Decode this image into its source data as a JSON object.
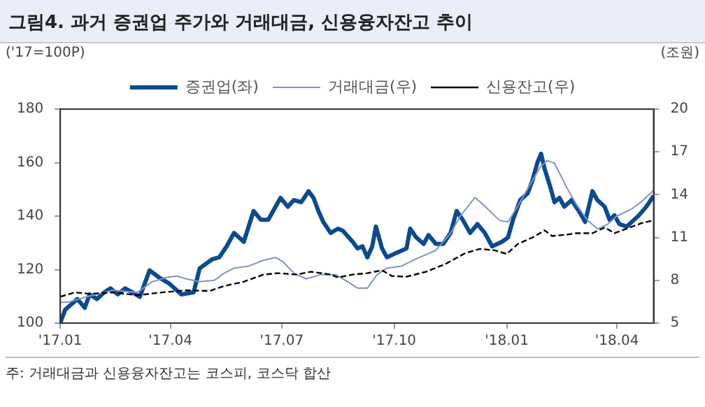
{
  "chart_data": {
    "type": "line",
    "title": "그림4. 과거 증권업 주가와 거래대금, 신용융자잔고 추이",
    "ylabel": "('17=100P)",
    "y2label": "(조원)",
    "annotations": [
      "주: 거래대금과 신용융자잔고는 코스피, 코스닥 합산"
    ],
    "xlim": [
      "2017-01-01",
      "2018-05-01"
    ],
    "xticks": [
      {
        "value": "2017-01-01",
        "label": "'17.01"
      },
      {
        "value": "2017-04-01",
        "label": "'17.04"
      },
      {
        "value": "2017-07-01",
        "label": "'17.07"
      },
      {
        "value": "2017-10-01",
        "label": "'17.10"
      },
      {
        "value": "2018-01-01",
        "label": "'18.01"
      },
      {
        "value": "2018-04-01",
        "label": "'18.04"
      }
    ],
    "ylim": [
      100,
      180
    ],
    "yticks": [
      100,
      120,
      140,
      160,
      180
    ],
    "y2lim": [
      5,
      20
    ],
    "y2ticks": [
      5,
      8,
      11,
      14,
      17,
      20
    ],
    "grid": false,
    "legend": "top",
    "marker": "none",
    "series": [
      {
        "name": "증권업(좌)",
        "color": "#0b4a8f",
        "line_style": "solid",
        "x": [
          "2017-01-01",
          "2017-01-05",
          "2017-01-11",
          "2017-01-15",
          "2017-01-21",
          "2017-01-25",
          "2017-01-31",
          "2017-02-06",
          "2017-02-11",
          "2017-02-17",
          "2017-02-23",
          "2017-03-01",
          "2017-03-07",
          "2017-03-15",
          "2017-03-23",
          "2017-03-31",
          "2017-04-10",
          "2017-04-20",
          "2017-04-25",
          "2017-05-05",
          "2017-05-11",
          "2017-05-17",
          "2017-05-23",
          "2017-05-31",
          "2017-06-08",
          "2017-06-14",
          "2017-06-20",
          "2017-06-24",
          "2017-06-30",
          "2017-07-06",
          "2017-07-11",
          "2017-07-17",
          "2017-07-23",
          "2017-07-27",
          "2017-07-31",
          "2017-08-04",
          "2017-08-10",
          "2017-08-16",
          "2017-08-20",
          "2017-08-28",
          "2017-09-01",
          "2017-09-05",
          "2017-09-09",
          "2017-09-13",
          "2017-09-16",
          "2017-09-21",
          "2017-09-25",
          "2017-10-03",
          "2017-10-11",
          "2017-10-14",
          "2017-10-19",
          "2017-10-25",
          "2017-10-29",
          "2017-11-04",
          "2017-11-10",
          "2017-11-16",
          "2017-11-21",
          "2017-11-26",
          "2017-12-02",
          "2017-12-08",
          "2017-12-14",
          "2017-12-20",
          "2017-12-28",
          "2018-01-02",
          "2018-01-06",
          "2018-01-12",
          "2018-01-18",
          "2018-01-22",
          "2018-01-26",
          "2018-01-29",
          "2018-02-01",
          "2018-02-05",
          "2018-02-09",
          "2018-02-13",
          "2018-02-17",
          "2018-02-23",
          "2018-03-02",
          "2018-03-06",
          "2018-03-12",
          "2018-03-16",
          "2018-03-22",
          "2018-03-26",
          "2018-03-30",
          "2018-04-03",
          "2018-04-09",
          "2018-04-15",
          "2018-04-19",
          "2018-04-25",
          "2018-05-01"
        ],
        "values": [
          100,
          105,
          107.4,
          109,
          105.7,
          110.7,
          109,
          111.5,
          113,
          110.7,
          113,
          111.5,
          109.8,
          119.7,
          117,
          114.8,
          110.7,
          111.5,
          120.5,
          123.8,
          124.6,
          128.7,
          133.7,
          130.4,
          141.9,
          138.6,
          138.6,
          141.9,
          146.8,
          143.5,
          146,
          145.2,
          149.3,
          146.8,
          141.9,
          137.8,
          133.7,
          135.3,
          134.5,
          130.4,
          127.9,
          128.7,
          124.6,
          128.7,
          136.1,
          127.9,
          124.6,
          126.3,
          127.9,
          135.3,
          132,
          129.6,
          132.9,
          129.6,
          129.6,
          133.7,
          141.9,
          138.6,
          133.7,
          137,
          133.7,
          128.7,
          130.4,
          132,
          138.6,
          146,
          148.5,
          153.4,
          160,
          163.3,
          157.5,
          151.7,
          145.2,
          146.8,
          143.5,
          146,
          141.1,
          137.8,
          149.3,
          146,
          143.5,
          138.6,
          140.3,
          137,
          136.1,
          138.6,
          140.3,
          143.5,
          147.6
        ]
      },
      {
        "name": "거래대금(우)",
        "color": "#7f93c9",
        "line_style": "solid",
        "axis": "y2",
        "x": [
          "2017-01-01",
          "2017-01-09",
          "2017-01-25",
          "2017-02-13",
          "2017-03-05",
          "2017-03-17",
          "2017-03-29",
          "2017-04-06",
          "2017-04-14",
          "2017-04-25",
          "2017-05-07",
          "2017-05-15",
          "2017-05-23",
          "2017-06-04",
          "2017-06-16",
          "2017-06-26",
          "2017-07-02",
          "2017-07-11",
          "2017-07-21",
          "2017-08-02",
          "2017-08-14",
          "2017-08-24",
          "2017-09-01",
          "2017-09-09",
          "2017-09-17",
          "2017-09-25",
          "2017-10-07",
          "2017-10-19",
          "2017-11-04",
          "2017-11-16",
          "2017-11-24",
          "2017-12-06",
          "2017-12-14",
          "2017-12-26",
          "2018-01-02",
          "2018-01-10",
          "2018-01-20",
          "2018-01-28",
          "2018-02-03",
          "2018-02-09",
          "2018-02-19",
          "2018-02-27",
          "2018-03-08",
          "2018-03-16",
          "2018-03-24",
          "2018-04-01",
          "2018-04-13",
          "2018-04-21",
          "2018-05-01"
        ],
        "values": [
          6.45,
          6.5,
          6.9,
          7.3,
          7.15,
          7.9,
          8.2,
          8.3,
          8.1,
          7.9,
          8,
          8.5,
          8.85,
          9,
          9.4,
          9.6,
          9.3,
          8.5,
          8.1,
          8.4,
          8.4,
          7.9,
          7.45,
          7.45,
          8.4,
          8.85,
          9,
          9.5,
          10.1,
          11.3,
          12.5,
          13.8,
          13.2,
          12.2,
          12.1,
          13.2,
          14.7,
          15.9,
          16.4,
          16.2,
          14.5,
          13.3,
          12.2,
          11.6,
          11.9,
          12.5,
          13,
          13.5,
          14.3
        ]
      },
      {
        "name": "신용잔고(우)",
        "color": "#000000",
        "line_style": "dashed",
        "axis": "y2",
        "x": [
          "2017-01-01",
          "2017-01-13",
          "2017-01-25",
          "2017-02-13",
          "2017-03-05",
          "2017-03-25",
          "2017-04-14",
          "2017-05-03",
          "2017-05-15",
          "2017-05-31",
          "2017-06-16",
          "2017-06-28",
          "2017-07-13",
          "2017-07-25",
          "2017-08-10",
          "2017-08-16",
          "2017-08-28",
          "2017-09-09",
          "2017-09-21",
          "2017-09-29",
          "2017-10-11",
          "2017-10-27",
          "2017-11-12",
          "2017-11-28",
          "2017-12-10",
          "2017-12-22",
          "2018-01-01",
          "2018-01-10",
          "2018-01-22",
          "2018-02-01",
          "2018-02-07",
          "2018-02-19",
          "2018-02-27",
          "2018-03-12",
          "2018-03-22",
          "2018-03-30",
          "2018-04-13",
          "2018-04-21",
          "2018-05-01"
        ],
        "values": [
          6.85,
          7.15,
          7.05,
          7.15,
          6.95,
          7.15,
          7.3,
          7.25,
          7.6,
          7.9,
          8.4,
          8.5,
          8.4,
          8.6,
          8.4,
          8.2,
          8.4,
          8.5,
          8.7,
          8.3,
          8.25,
          8.6,
          9.15,
          9.9,
          10.2,
          10.1,
          9.85,
          10.55,
          11,
          11.5,
          11.1,
          11.2,
          11.3,
          11.3,
          11.7,
          11.3,
          11.75,
          12,
          12.2
        ]
      }
    ]
  }
}
